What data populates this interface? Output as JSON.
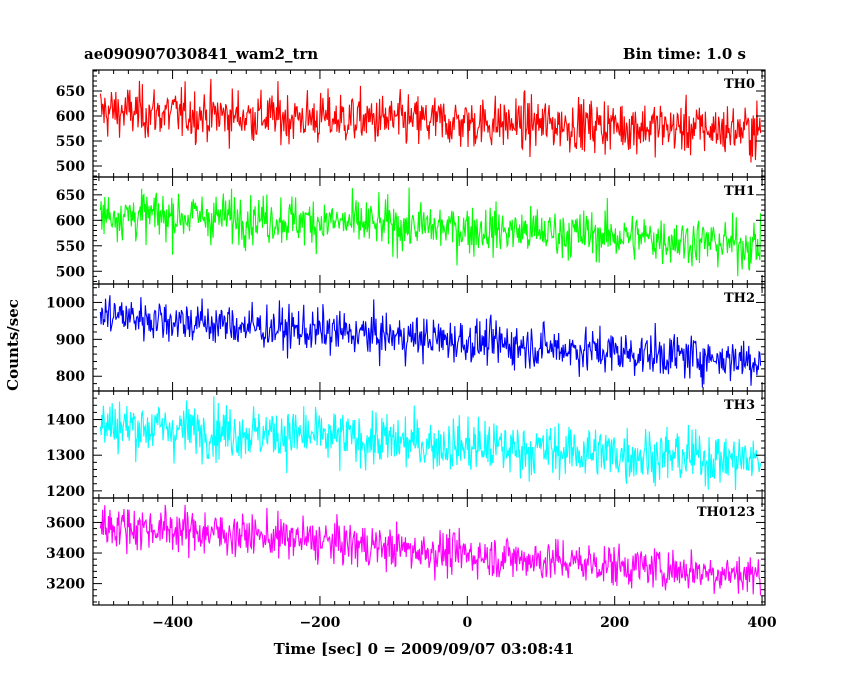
{
  "header": {
    "title": "ae090907030841_wam2_trn",
    "bin_time": "Bin time: 1.0 s"
  },
  "chart_data": {
    "type": "line",
    "xlabel": "Time [sec] 0 = 2009/09/07 03:08:41",
    "ylabel": "Counts/sec",
    "xlim": [
      -508,
      404
    ],
    "xticks": [
      -400,
      -200,
      0,
      200,
      400
    ],
    "x_start": -498,
    "x_end": 398,
    "bin_time": 1.0,
    "panels": [
      {
        "name": "TH0",
        "color": "#ff0000",
        "ylim": [
          478,
          692
        ],
        "yticks": [
          500,
          550,
          600,
          650
        ],
        "trend": [
          [
            -498,
            610
          ],
          [
            -300,
            600
          ],
          [
            0,
            587
          ],
          [
            200,
            581
          ],
          [
            398,
            570
          ]
        ],
        "noise": 26
      },
      {
        "name": "TH1",
        "color": "#00ff00",
        "ylim": [
          475,
          685
        ],
        "yticks": [
          500,
          550,
          600,
          650
        ],
        "trend": [
          [
            -498,
            612
          ],
          [
            -300,
            605
          ],
          [
            0,
            583
          ],
          [
            200,
            570
          ],
          [
            398,
            550
          ]
        ],
        "noise": 24
      },
      {
        "name": "TH2",
        "color": "#0000ff",
        "ylim": [
          760,
          1050
        ],
        "yticks": [
          800,
          900,
          1000
        ],
        "trend": [
          [
            -498,
            968
          ],
          [
            -300,
            935
          ],
          [
            0,
            895
          ],
          [
            200,
            865
          ],
          [
            398,
            843
          ]
        ],
        "noise": 30
      },
      {
        "name": "TH3",
        "color": "#00ffff",
        "ylim": [
          1180,
          1480
        ],
        "yticks": [
          1200,
          1300,
          1400
        ],
        "trend": [
          [
            -498,
            1385
          ],
          [
            -300,
            1365
          ],
          [
            0,
            1325
          ],
          [
            200,
            1305
          ],
          [
            398,
            1285
          ]
        ],
        "noise": 38
      },
      {
        "name": "TH0123",
        "color": "#ff00ff",
        "ylim": [
          3060,
          3760
        ],
        "yticks": [
          3200,
          3400,
          3600
        ],
        "trend": [
          [
            -498,
            3585
          ],
          [
            -300,
            3520
          ],
          [
            0,
            3390
          ],
          [
            200,
            3320
          ],
          [
            398,
            3255
          ]
        ],
        "noise": 70
      }
    ]
  }
}
